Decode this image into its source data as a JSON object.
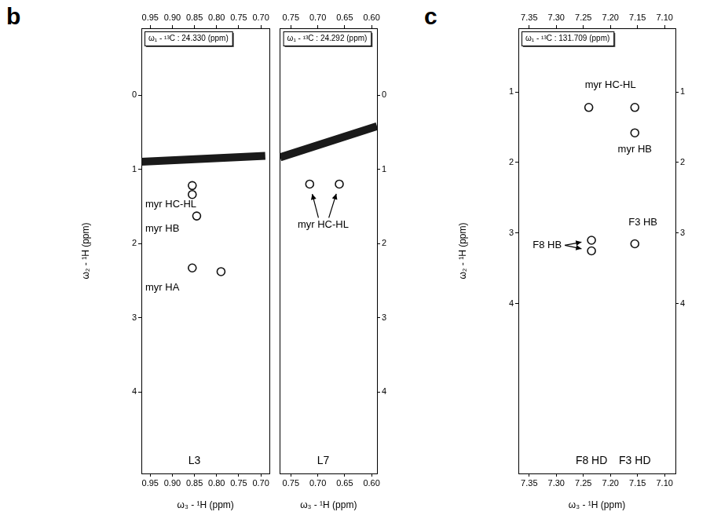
{
  "chart_data": [
    {
      "type": "scatter",
      "panel": "b",
      "title": "ω₁ - ¹³C : 24.330 (ppm)",
      "x_label": "ω₃ - ¹H (ppm)",
      "y_label": "ω₂ - ¹H (ppm)",
      "xlim": [
        0.97,
        0.68
      ],
      "xticks": [
        0.95,
        {
          "value": 0.9,
          "label": "0.90"
        },
        0.85,
        {
          "value": 0.8,
          "label": "0.80"
        },
        0.75,
        {
          "value": 0.7,
          "label": "0.70"
        }
      ],
      "ylim": [
        5.1,
        -0.9
      ],
      "yticks": [
        0,
        1,
        2,
        3,
        4
      ],
      "grid": false,
      "marker": "circle",
      "diagonal": [
        [
          0.97,
          0.9
        ],
        [
          0.69,
          0.82
        ]
      ],
      "peaks": [
        {
          "label": "myr HC-HL",
          "points": [
            [
              0.855,
              1.22
            ],
            [
              0.855,
              1.34
            ]
          ]
        },
        {
          "label": "myr HB",
          "points": [
            [
              0.845,
              1.63
            ]
          ]
        },
        {
          "label": "myr HA",
          "points": [
            [
              0.855,
              2.33
            ],
            [
              0.79,
              2.38
            ]
          ]
        }
      ],
      "strip_labels": [
        {
          "text": "L3",
          "x": 0.85
        }
      ]
    },
    {
      "type": "scatter",
      "panel": "b",
      "title": "ω₁ - ¹³C : 24.292 (ppm)",
      "x_label": "ω₃ - ¹H (ppm)",
      "xlim": [
        0.77,
        0.59
      ],
      "xticks": [
        0.75,
        {
          "value": 0.7,
          "label": "0.70"
        },
        0.65,
        {
          "value": 0.6,
          "label": "0.60"
        }
      ],
      "ylim": [
        5.1,
        -0.9
      ],
      "yticks": [
        0,
        1,
        2,
        3,
        4
      ],
      "grid": false,
      "marker": "circle",
      "diagonal": [
        [
          0.77,
          0.84
        ],
        [
          0.59,
          0.42
        ]
      ],
      "peaks": [
        {
          "label": "myr HC-HL",
          "points": [
            [
              0.715,
              1.2
            ],
            [
              0.66,
              1.2
            ]
          ]
        }
      ],
      "strip_labels": [
        {
          "text": "L7",
          "x": 0.69
        }
      ]
    },
    {
      "type": "scatter",
      "panel": "c",
      "title": "ω₁ - ¹³C : 131.709 (ppm)",
      "x_label": "ω₃ - ¹H (ppm)",
      "y_label": "ω₂ - ¹H (ppm)",
      "xlim": [
        7.37,
        7.08
      ],
      "xticks": [
        7.35,
        {
          "value": 7.3,
          "label": "7.30"
        },
        7.25,
        {
          "value": 7.2,
          "label": "7.20"
        },
        7.15,
        {
          "value": 7.1,
          "label": "7.10"
        }
      ],
      "ylim": [
        6.4,
        0.1
      ],
      "yticks": [
        1,
        2,
        3,
        4
      ],
      "grid": false,
      "marker": "circle",
      "peaks": [
        {
          "label": "myr HC-HL",
          "points": [
            [
              7.24,
              1.22
            ],
            [
              7.155,
              1.22
            ]
          ]
        },
        {
          "label": "myr HB",
          "points": [
            [
              7.155,
              1.58
            ]
          ]
        },
        {
          "label": "F8 HB",
          "points": [
            [
              7.235,
              3.1
            ],
            [
              7.235,
              3.25
            ]
          ]
        },
        {
          "label": "F3 HB",
          "points": [
            [
              7.155,
              3.15
            ]
          ]
        }
      ],
      "strip_labels": [
        {
          "text": "F8 HD",
          "x": 7.235
        },
        {
          "text": "F3 HD",
          "x": 7.155
        }
      ]
    }
  ]
}
